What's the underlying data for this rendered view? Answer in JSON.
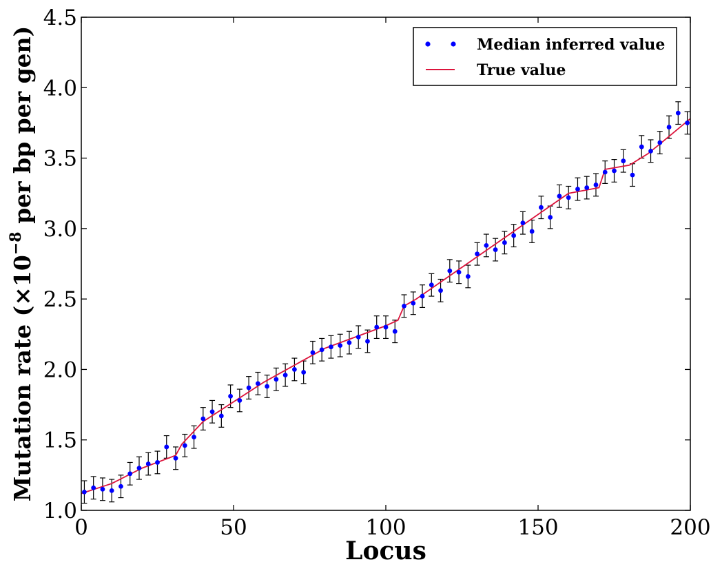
{
  "chart_data": {
    "type": "scatter",
    "title": "",
    "xlabel": "Locus",
    "ylabel": "Mutation rate (×10",
    "ylabel_exponent": "−8",
    "ylabel_suffix": " per bp per gen)",
    "xlim": [
      0,
      200
    ],
    "ylim": [
      1.0,
      4.5
    ],
    "xticks": [
      0,
      50,
      100,
      150,
      200
    ],
    "xtick_labels": [
      "0",
      "50",
      "100",
      "150",
      "200"
    ],
    "yticks": [
      1.0,
      1.5,
      2.0,
      2.5,
      3.0,
      3.5,
      4.0,
      4.5
    ],
    "ytick_labels": [
      "1.0",
      "1.5",
      "2.0",
      "2.5",
      "3.0",
      "3.5",
      "4.0",
      "4.5"
    ],
    "grid": false,
    "legend_position": "top-right",
    "legend": [
      {
        "label": "Median inferred value",
        "marker": "dots",
        "color": "#0000ff"
      },
      {
        "label": "True value",
        "marker": "line",
        "color": "#dc143c"
      }
    ],
    "error_bar_halfwidth": 0.08,
    "error_bar_color": "#000000",
    "series": [
      {
        "name": "True value",
        "type": "line",
        "color": "#dc143c",
        "x": [
          0,
          10,
          20,
          31,
          33,
          40,
          60,
          80,
          100,
          104,
          106,
          110,
          130,
          150,
          160,
          170,
          172,
          180,
          186,
          190,
          200
        ],
        "y": [
          1.12,
          1.19,
          1.3,
          1.39,
          1.47,
          1.63,
          1.91,
          2.15,
          2.31,
          2.35,
          2.45,
          2.5,
          2.8,
          3.1,
          3.25,
          3.29,
          3.42,
          3.45,
          3.53,
          3.6,
          3.78
        ]
      },
      {
        "name": "Median inferred value",
        "type": "scatter",
        "color": "#0000ff",
        "x": [
          1,
          4,
          7,
          10,
          13,
          16,
          19,
          22,
          25,
          28,
          31,
          34,
          37,
          40,
          43,
          46,
          49,
          52,
          55,
          58,
          61,
          64,
          67,
          70,
          73,
          76,
          79,
          82,
          85,
          88,
          91,
          94,
          97,
          100,
          103,
          106,
          109,
          112,
          115,
          118,
          121,
          124,
          127,
          130,
          133,
          136,
          139,
          142,
          145,
          148,
          151,
          154,
          157,
          160,
          163,
          166,
          169,
          172,
          175,
          178,
          181,
          184,
          187,
          190,
          193,
          196,
          199
        ],
        "y": [
          1.13,
          1.16,
          1.15,
          1.14,
          1.17,
          1.26,
          1.3,
          1.33,
          1.34,
          1.45,
          1.37,
          1.46,
          1.52,
          1.65,
          1.7,
          1.67,
          1.81,
          1.78,
          1.87,
          1.9,
          1.88,
          1.93,
          1.96,
          2.0,
          1.98,
          2.12,
          2.14,
          2.16,
          2.17,
          2.19,
          2.23,
          2.2,
          2.3,
          2.3,
          2.27,
          2.45,
          2.47,
          2.52,
          2.6,
          2.56,
          2.7,
          2.69,
          2.66,
          2.82,
          2.88,
          2.85,
          2.9,
          2.95,
          3.04,
          2.98,
          3.15,
          3.08,
          3.23,
          3.22,
          3.28,
          3.29,
          3.31,
          3.4,
          3.41,
          3.48,
          3.38,
          3.58,
          3.55,
          3.61,
          3.72,
          3.82,
          3.75
        ]
      }
    ]
  }
}
